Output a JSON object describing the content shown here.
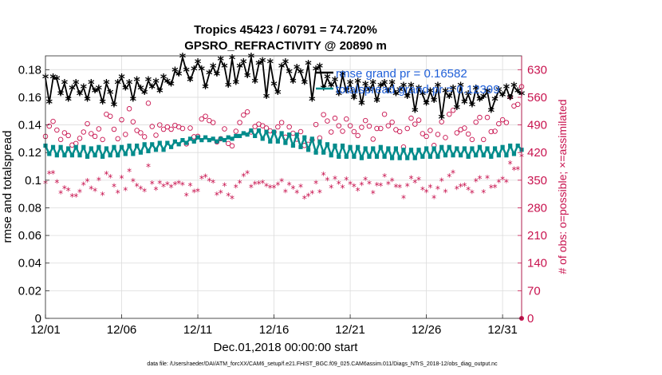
{
  "page": {
    "footer": "data file: /Users/raeder/DAI/ATM_forcXX/CAM6_setup/f.e21.FHIST_BGC.f09_025.CAM6assim.011/Diags_NTrS_2018-12/obs_diag_output.nc"
  },
  "chart_data": {
    "type": "line",
    "title": "Tropics 45423 / 60791 = 74.720%",
    "subtitle": "GPSRO_REFRACTIVITY @ 20890 m",
    "xlabel": "Dec.01,2018 00:00:00 start",
    "ylabel": "rmse and totalspread",
    "y2label": "# of obs: o=possible; ×=assimilated",
    "xlim": [
      0,
      31.25
    ],
    "ylim": [
      0,
      0.19
    ],
    "y2lim": [
      0,
      665
    ],
    "x_tick_labels": [
      "12/01",
      "12/06",
      "12/11",
      "12/16",
      "12/21",
      "12/26",
      "12/31"
    ],
    "x_tick_values": [
      0,
      5,
      10,
      15,
      20,
      25,
      30
    ],
    "y_tick_labels": [
      "0",
      "0.02",
      "0.04",
      "0.06",
      "0.08",
      "0.1",
      "0.12",
      "0.14",
      "0.16",
      "0.18"
    ],
    "y_tick_values": [
      0,
      0.02,
      0.04,
      0.06,
      0.08,
      0.1,
      0.12,
      0.14,
      0.16,
      0.18
    ],
    "y2_tick_labels": [
      "0",
      "70",
      "140",
      "210",
      "280",
      "350",
      "420",
      "490",
      "560",
      "630"
    ],
    "y2_tick_values": [
      0,
      70,
      140,
      210,
      280,
      350,
      420,
      490,
      560,
      630
    ],
    "legend": [
      "rmse grand pr = 0.16582",
      "totalspread grand pr = 0.12399"
    ],
    "legend_position": "top-right",
    "series": [
      {
        "name": "rmse",
        "color": "#000000",
        "x": [
          0.0,
          0.25,
          0.5,
          0.75,
          1.0,
          1.25,
          1.5,
          1.75,
          2.0,
          2.25,
          2.5,
          2.75,
          3.0,
          3.25,
          3.5,
          3.75,
          4.0,
          4.25,
          4.5,
          4.75,
          5.0,
          5.25,
          5.5,
          5.75,
          6.0,
          6.25,
          6.5,
          6.75,
          7.0,
          7.25,
          7.5,
          7.75,
          8.0,
          8.25,
          8.5,
          8.75,
          9.0,
          9.25,
          9.5,
          9.75,
          10.0,
          10.25,
          10.5,
          10.75,
          11.0,
          11.25,
          11.5,
          11.75,
          12.0,
          12.25,
          12.5,
          12.75,
          13.0,
          13.25,
          13.5,
          13.75,
          14.0,
          14.25,
          14.5,
          14.75,
          15.0,
          15.25,
          15.5,
          15.75,
          16.0,
          16.25,
          16.5,
          16.75,
          17.0,
          17.25,
          17.5,
          17.75,
          18.0,
          18.25,
          18.5,
          18.75,
          19.0,
          19.25,
          19.5,
          19.75,
          20.0,
          20.25,
          20.5,
          20.75,
          21.0,
          21.25,
          21.5,
          21.75,
          22.0,
          22.25,
          22.5,
          22.75,
          23.0,
          23.25,
          23.5,
          23.75,
          24.0,
          24.25,
          24.5,
          24.75,
          25.0,
          25.25,
          25.5,
          25.75,
          26.0,
          26.25,
          26.5,
          26.75,
          27.0,
          27.25,
          27.5,
          27.75,
          28.0,
          28.25,
          28.5,
          28.75,
          29.0,
          29.25,
          29.5,
          29.75,
          30.0,
          30.25,
          30.5,
          30.75,
          31.0,
          31.25
        ],
        "values": [
          0.174,
          0.156,
          0.174,
          0.173,
          0.162,
          0.17,
          0.158,
          0.166,
          0.17,
          0.162,
          0.167,
          0.158,
          0.17,
          0.164,
          0.166,
          0.156,
          0.17,
          0.163,
          0.154,
          0.17,
          0.174,
          0.166,
          0.17,
          0.158,
          0.172,
          0.166,
          0.163,
          0.172,
          0.167,
          0.171,
          0.164,
          0.174,
          0.171,
          0.169,
          0.179,
          0.176,
          0.189,
          0.179,
          0.172,
          0.18,
          0.185,
          0.18,
          0.167,
          0.177,
          0.182,
          0.176,
          0.187,
          0.182,
          0.168,
          0.188,
          0.17,
          0.182,
          0.185,
          0.175,
          0.189,
          0.171,
          0.184,
          0.186,
          0.16,
          0.185,
          0.169,
          0.163,
          0.182,
          0.185,
          0.178,
          0.171,
          0.181,
          0.178,
          0.17,
          0.184,
          0.158,
          0.18,
          0.182,
          0.166,
          0.174,
          0.168,
          0.172,
          0.162,
          0.176,
          0.164,
          0.17,
          0.159,
          0.171,
          0.155,
          0.169,
          0.165,
          0.17,
          0.157,
          0.168,
          0.17,
          0.164,
          0.17,
          0.162,
          0.165,
          0.168,
          0.16,
          0.168,
          0.15,
          0.166,
          0.162,
          0.155,
          0.164,
          0.157,
          0.168,
          0.145,
          0.164,
          0.16,
          0.166,
          0.152,
          0.168,
          0.156,
          0.162,
          0.154,
          0.166,
          0.158,
          0.16,
          0.164,
          0.15,
          0.158,
          0.165,
          0.161,
          0.167,
          0.159,
          0.168,
          0.164,
          0.162
        ]
      },
      {
        "name": "totalspread",
        "color": "#008b8b",
        "x": [
          0.0,
          0.25,
          0.5,
          0.75,
          1.0,
          1.25,
          1.5,
          1.75,
          2.0,
          2.25,
          2.5,
          2.75,
          3.0,
          3.25,
          3.5,
          3.75,
          4.0,
          4.25,
          4.5,
          4.75,
          5.0,
          5.25,
          5.5,
          5.75,
          6.0,
          6.25,
          6.5,
          6.75,
          7.0,
          7.25,
          7.5,
          7.75,
          8.0,
          8.25,
          8.5,
          8.75,
          9.0,
          9.25,
          9.5,
          9.75,
          10.0,
          10.25,
          10.5,
          10.75,
          11.0,
          11.25,
          11.5,
          11.75,
          12.0,
          12.25,
          12.5,
          12.75,
          13.0,
          13.25,
          13.5,
          13.75,
          14.0,
          14.25,
          14.5,
          14.75,
          15.0,
          15.25,
          15.5,
          15.75,
          16.0,
          16.25,
          16.5,
          16.75,
          17.0,
          17.25,
          17.5,
          17.75,
          18.0,
          18.25,
          18.5,
          18.75,
          19.0,
          19.25,
          19.5,
          19.75,
          20.0,
          20.25,
          20.5,
          20.75,
          21.0,
          21.25,
          21.5,
          21.75,
          22.0,
          22.25,
          22.5,
          22.75,
          23.0,
          23.25,
          23.5,
          23.75,
          24.0,
          24.25,
          24.5,
          24.75,
          25.0,
          25.25,
          25.5,
          25.75,
          26.0,
          26.25,
          26.5,
          26.75,
          27.0,
          27.25,
          27.5,
          27.75,
          28.0,
          28.25,
          28.5,
          28.75,
          29.0,
          29.25,
          29.5,
          29.75,
          30.0,
          30.25,
          30.5,
          30.75,
          31.0,
          31.25
        ],
        "values": [
          0.125,
          0.119,
          0.124,
          0.118,
          0.124,
          0.118,
          0.123,
          0.118,
          0.124,
          0.118,
          0.124,
          0.117,
          0.123,
          0.118,
          0.124,
          0.117,
          0.123,
          0.118,
          0.124,
          0.118,
          0.124,
          0.119,
          0.125,
          0.119,
          0.125,
          0.12,
          0.126,
          0.121,
          0.126,
          0.122,
          0.127,
          0.122,
          0.127,
          0.124,
          0.128,
          0.126,
          0.129,
          0.127,
          0.13,
          0.128,
          0.131,
          0.129,
          0.131,
          0.129,
          0.13,
          0.128,
          0.13,
          0.129,
          0.131,
          0.13,
          0.132,
          0.132,
          0.134,
          0.133,
          0.136,
          0.132,
          0.136,
          0.13,
          0.135,
          0.128,
          0.135,
          0.128,
          0.134,
          0.127,
          0.133,
          0.125,
          0.133,
          0.124,
          0.131,
          0.122,
          0.13,
          0.12,
          0.128,
          0.12,
          0.126,
          0.118,
          0.125,
          0.117,
          0.125,
          0.117,
          0.124,
          0.117,
          0.124,
          0.116,
          0.123,
          0.117,
          0.123,
          0.117,
          0.124,
          0.117,
          0.123,
          0.116,
          0.123,
          0.116,
          0.122,
          0.116,
          0.122,
          0.116,
          0.122,
          0.117,
          0.123,
          0.117,
          0.123,
          0.117,
          0.124,
          0.118,
          0.124,
          0.118,
          0.123,
          0.118,
          0.123,
          0.117,
          0.123,
          0.118,
          0.124,
          0.118,
          0.123,
          0.117,
          0.123,
          0.118,
          0.124,
          0.118,
          0.125,
          0.119,
          0.125,
          0.122
        ]
      },
      {
        "name": "obs possible",
        "color": "#c8124e",
        "marker": "o",
        "axis": "right",
        "x": [
          0.0,
          0.25,
          0.5,
          0.75,
          1.0,
          1.25,
          1.5,
          1.75,
          2.0,
          2.25,
          2.5,
          2.75,
          3.0,
          3.25,
          3.5,
          3.75,
          4.0,
          4.25,
          4.5,
          4.75,
          5.0,
          5.25,
          5.5,
          5.75,
          6.0,
          6.25,
          6.5,
          6.75,
          7.0,
          7.25,
          7.5,
          7.75,
          8.0,
          8.25,
          8.5,
          8.75,
          9.0,
          9.25,
          9.5,
          9.75,
          10.0,
          10.25,
          10.5,
          10.75,
          11.0,
          11.25,
          11.5,
          11.75,
          12.0,
          12.25,
          12.5,
          12.75,
          13.0,
          13.25,
          13.5,
          13.75,
          14.0,
          14.25,
          14.5,
          14.75,
          15.0,
          15.25,
          15.5,
          15.75,
          16.0,
          16.25,
          16.5,
          16.75,
          17.0,
          17.25,
          17.5,
          17.75,
          18.0,
          18.25,
          18.5,
          18.75,
          19.0,
          19.25,
          19.5,
          19.75,
          20.0,
          20.25,
          20.5,
          20.75,
          21.0,
          21.25,
          21.5,
          21.75,
          22.0,
          22.25,
          22.5,
          22.75,
          23.0,
          23.25,
          23.5,
          23.75,
          24.0,
          24.25,
          24.5,
          24.75,
          25.0,
          25.25,
          25.5,
          25.75,
          26.0,
          26.25,
          26.5,
          26.75,
          27.0,
          27.25,
          27.5,
          27.75,
          28.0,
          28.25,
          28.5,
          28.75,
          29.0,
          29.25,
          29.5,
          29.75,
          30.0,
          30.25,
          30.5,
          30.75,
          31.0,
          31.25
        ],
        "values": [
          461,
          487,
          499,
          477,
          453,
          470,
          463,
          439,
          443,
          456,
          472,
          493,
          468,
          461,
          480,
          453,
          517,
          512,
          479,
          455,
          503,
          466,
          531,
          498,
          476,
          470,
          460,
          545,
          486,
          464,
          490,
          479,
          485,
          479,
          489,
          485,
          481,
          442,
          482,
          460,
          461,
          505,
          512,
          501,
          496,
          447,
          455,
          480,
          443,
          437,
          474,
          496,
          515,
          523,
          472,
          486,
          492,
          488,
          482,
          475,
          472,
          485,
          496,
          459,
          485,
          469,
          454,
          473,
          438,
          441,
          452,
          491,
          457,
          516,
          500,
          472,
          507,
          488,
          474,
          505,
          488,
          473,
          463,
          484,
          501,
          487,
          454,
          481,
          481,
          517,
          488,
          497,
          478,
          473,
          434,
          481,
          507,
          492,
          502,
          468,
          461,
          476,
          438,
          466,
          498,
          458,
          517,
          527,
          470,
          478,
          482,
          467,
          453,
          497,
          509,
          453,
          509,
          473,
          474,
          493,
          503,
          496,
          561,
          538,
          542,
          587
        ]
      },
      {
        "name": "obs assimilated",
        "color": "#c8124e",
        "marker": "*",
        "axis": "right",
        "x": [
          0.0,
          0.25,
          0.5,
          0.75,
          1.0,
          1.25,
          1.5,
          1.75,
          2.0,
          2.25,
          2.5,
          2.75,
          3.0,
          3.25,
          3.5,
          3.75,
          4.0,
          4.25,
          4.5,
          4.75,
          5.0,
          5.25,
          5.5,
          5.75,
          6.0,
          6.25,
          6.5,
          6.75,
          7.0,
          7.25,
          7.5,
          7.75,
          8.0,
          8.25,
          8.5,
          8.75,
          9.0,
          9.25,
          9.5,
          9.75,
          10.0,
          10.25,
          10.5,
          10.75,
          11.0,
          11.25,
          11.5,
          11.75,
          12.0,
          12.25,
          12.5,
          12.75,
          13.0,
          13.25,
          13.5,
          13.75,
          14.0,
          14.25,
          14.5,
          14.75,
          15.0,
          15.25,
          15.5,
          15.75,
          16.0,
          16.25,
          16.5,
          16.75,
          17.0,
          17.25,
          17.5,
          17.75,
          18.0,
          18.25,
          18.5,
          18.75,
          19.0,
          19.25,
          19.5,
          19.75,
          20.0,
          20.25,
          20.5,
          20.75,
          21.0,
          21.25,
          21.5,
          21.75,
          22.0,
          22.25,
          22.5,
          22.75,
          23.0,
          23.25,
          23.5,
          23.75,
          24.0,
          24.25,
          24.5,
          24.75,
          25.0,
          25.25,
          25.5,
          25.75,
          26.0,
          26.25,
          26.5,
          26.75,
          27.0,
          27.25,
          27.5,
          27.75,
          28.0,
          28.25,
          28.5,
          28.75,
          29.0,
          29.25,
          29.5,
          29.75,
          30.0,
          30.25,
          30.5,
          30.75,
          31.0,
          31.25
        ],
        "values": [
          343,
          367,
          368,
          345,
          317,
          329,
          324,
          309,
          309,
          320,
          339,
          348,
          328,
          323,
          351,
          313,
          366,
          358,
          335,
          318,
          356,
          325,
          373,
          348,
          336,
          328,
          322,
          385,
          342,
          326,
          343,
          335,
          340,
          333,
          340,
          343,
          339,
          311,
          337,
          320,
          322,
          355,
          359,
          349,
          345,
          313,
          318,
          337,
          311,
          304,
          333,
          344,
          361,
          368,
          332,
          341,
          342,
          344,
          336,
          331,
          331,
          339,
          348,
          320,
          339,
          329,
          318,
          334,
          304,
          310,
          317,
          343,
          319,
          364,
          351,
          331,
          354,
          342,
          331,
          352,
          341,
          335,
          324,
          339,
          352,
          342,
          317,
          338,
          337,
          360,
          341,
          349,
          334,
          333,
          305,
          336,
          355,
          345,
          352,
          326,
          320,
          333,
          305,
          328,
          349,
          320,
          360,
          369,
          328,
          335,
          337,
          326,
          318,
          348,
          355,
          319,
          356,
          331,
          333,
          346,
          353,
          346,
          392,
          377,
          378,
          410
        ]
      }
    ]
  }
}
